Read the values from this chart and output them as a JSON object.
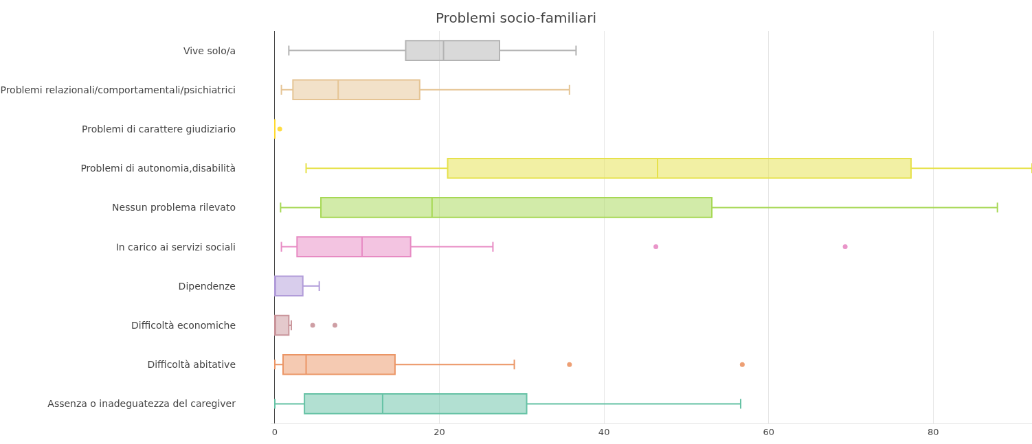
{
  "chart_data": {
    "type": "box",
    "title": "Problemi socio-familiari",
    "orientation": "horizontal",
    "categories": [
      "Vive solo/a",
      "Problemi relazionali/comportamentali/psichiatrici",
      "Problemi di carattere giudiziario",
      "Problemi di autonomia,disabilità",
      "Nessun problema rilevato",
      "In carico ai servizi sociali",
      "Dipendenze",
      "Difficoltà economiche",
      "Difficoltà abitative",
      "Assenza o inadeguatezza del caregiver"
    ],
    "colors": [
      "#b3b3b3",
      "#e5c494",
      "#ffd92f",
      "#e6e14a",
      "#a6d854",
      "#e78ac3",
      "#b19cd9",
      "#c9949a",
      "#eb9565",
      "#66c2a5"
    ],
    "boxes": [
      {
        "low": 1.7,
        "q1": 15.9,
        "median": 20.5,
        "q3": 27.3,
        "high": 36.6
      },
      {
        "low": 0.8,
        "q1": 2.2,
        "median": 7.7,
        "q3": 17.6,
        "high": 35.8
      },
      {
        "low": 0,
        "q1": 0,
        "median": 0,
        "q3": 0,
        "high": 0,
        "outliers": [
          0.6
        ]
      },
      {
        "low": 3.8,
        "q1": 21.0,
        "median": 46.5,
        "q3": 77.3,
        "high": 92
      },
      {
        "low": 0.7,
        "q1": 5.6,
        "median": 19.1,
        "q3": 53.1,
        "high": 87.8
      },
      {
        "low": 0.8,
        "q1": 2.7,
        "median": 10.6,
        "q3": 16.5,
        "high": 26.5,
        "outliers": [
          46.3,
          69.3
        ]
      },
      {
        "low": 0,
        "q1": 0,
        "median": 0,
        "q3": 3.4,
        "high": 5.4
      },
      {
        "low": 0,
        "q1": 0,
        "median": 0,
        "q3": 1.7,
        "high": 2.0,
        "outliers": [
          4.6,
          7.3
        ]
      },
      {
        "low": 0,
        "q1": 1.0,
        "median": 3.8,
        "q3": 14.6,
        "high": 29.1,
        "outliers": [
          35.8,
          56.8
        ]
      },
      {
        "low": 0,
        "q1": 3.6,
        "median": 13.1,
        "q3": 30.6,
        "high": 56.6
      }
    ],
    "xlim": [
      -0.5,
      92
    ],
    "xticks": [
      0,
      20,
      40,
      60,
      80
    ],
    "grid": "x"
  }
}
